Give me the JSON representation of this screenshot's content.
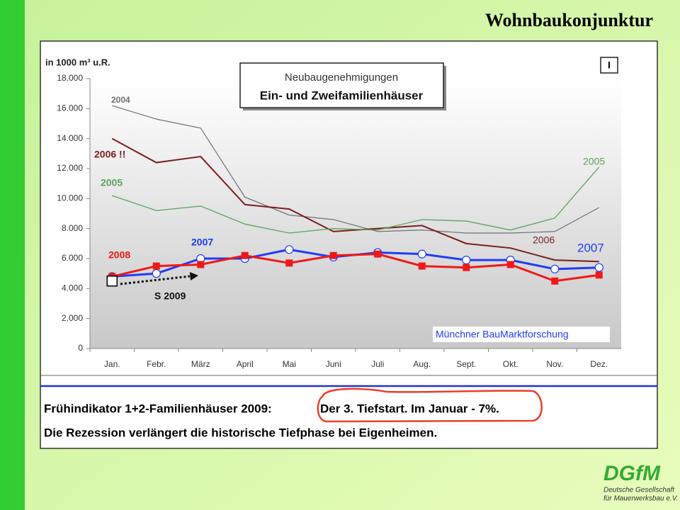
{
  "title": "Wohnbaukonjunktur",
  "chart_data": {
    "type": "line",
    "unit_label": "in 1000 m³ u.R.",
    "heading": [
      "Neubaugenehmigungen",
      "Ein- und Zweifamilienhäuser"
    ],
    "corner_mark": "I",
    "source": "Münchner BauMarktforschung",
    "categories": [
      "Jan.",
      "Febr.",
      "März",
      "April",
      "Mai",
      "Juni",
      "Juli",
      "Aug.",
      "Sept.",
      "Okt.",
      "Nov.",
      "Dez."
    ],
    "ylim": [
      0,
      18000
    ],
    "yticks": [
      0,
      {
        "value": 2000,
        "label": "2.000"
      },
      {
        "value": 4000,
        "label": "4.000"
      },
      {
        "value": 6000,
        "label": "6.000"
      },
      {
        "value": 8000,
        "label": "8.000"
      },
      {
        "value": 10000,
        "label": "10.000"
      },
      {
        "value": 12000,
        "label": "12.000"
      },
      {
        "value": 14000,
        "label": "14.000"
      },
      {
        "value": 16000,
        "label": "16.000"
      },
      {
        "value": 18000,
        "label": "18.000"
      }
    ],
    "grid": false,
    "series": [
      {
        "name": "2004",
        "color": "#707070",
        "values": [
          16200,
          15300,
          14700,
          10100,
          8900,
          8600,
          7800,
          7900,
          7700,
          7700,
          7800,
          9400
        ]
      },
      {
        "name": "2006 !!",
        "end_label": "2006",
        "color": "#7b1e1e",
        "values": [
          14000,
          12400,
          12800,
          9600,
          9300,
          7800,
          8000,
          8200,
          7000,
          6700,
          5900,
          5800
        ]
      },
      {
        "name": "2005",
        "end_label": "2005",
        "color": "#5aa55a",
        "values": [
          10200,
          9200,
          9500,
          8300,
          7700,
          8000,
          7900,
          8600,
          8500,
          7900,
          8700,
          12100
        ]
      },
      {
        "name": "2007",
        "end_label": "2007",
        "color": "#1f3cf5",
        "marker": "circle",
        "values": [
          4800,
          5000,
          6000,
          6000,
          6600,
          6100,
          6400,
          6300,
          5900,
          5900,
          5300,
          5400
        ]
      },
      {
        "name": "2008",
        "color": "#f01818",
        "marker": "square",
        "values": [
          4800,
          5500,
          5600,
          6200,
          5700,
          6200,
          6300,
          5500,
          5400,
          5600,
          4500,
          4900
        ]
      },
      {
        "name": "S 2009",
        "color": "#000000",
        "marker": "open-square",
        "values": [
          4500,
          null,
          null,
          null,
          null,
          null,
          null,
          null,
          null,
          null,
          null,
          null
        ]
      }
    ]
  },
  "notes": {
    "indicator": "Frühindikator 1+2-Familienhäuser 2009:",
    "highlight": "Der 3. Tiefstart.  Im Januar - 7%.",
    "conclusion": "Die Rezession verlängert die historische Tiefphase bei Eigenheimen."
  },
  "logo": {
    "mark": "DGfM",
    "line1": "Deutsche Gesellschaft",
    "line2": "für Mauerwerksbau e.V."
  }
}
